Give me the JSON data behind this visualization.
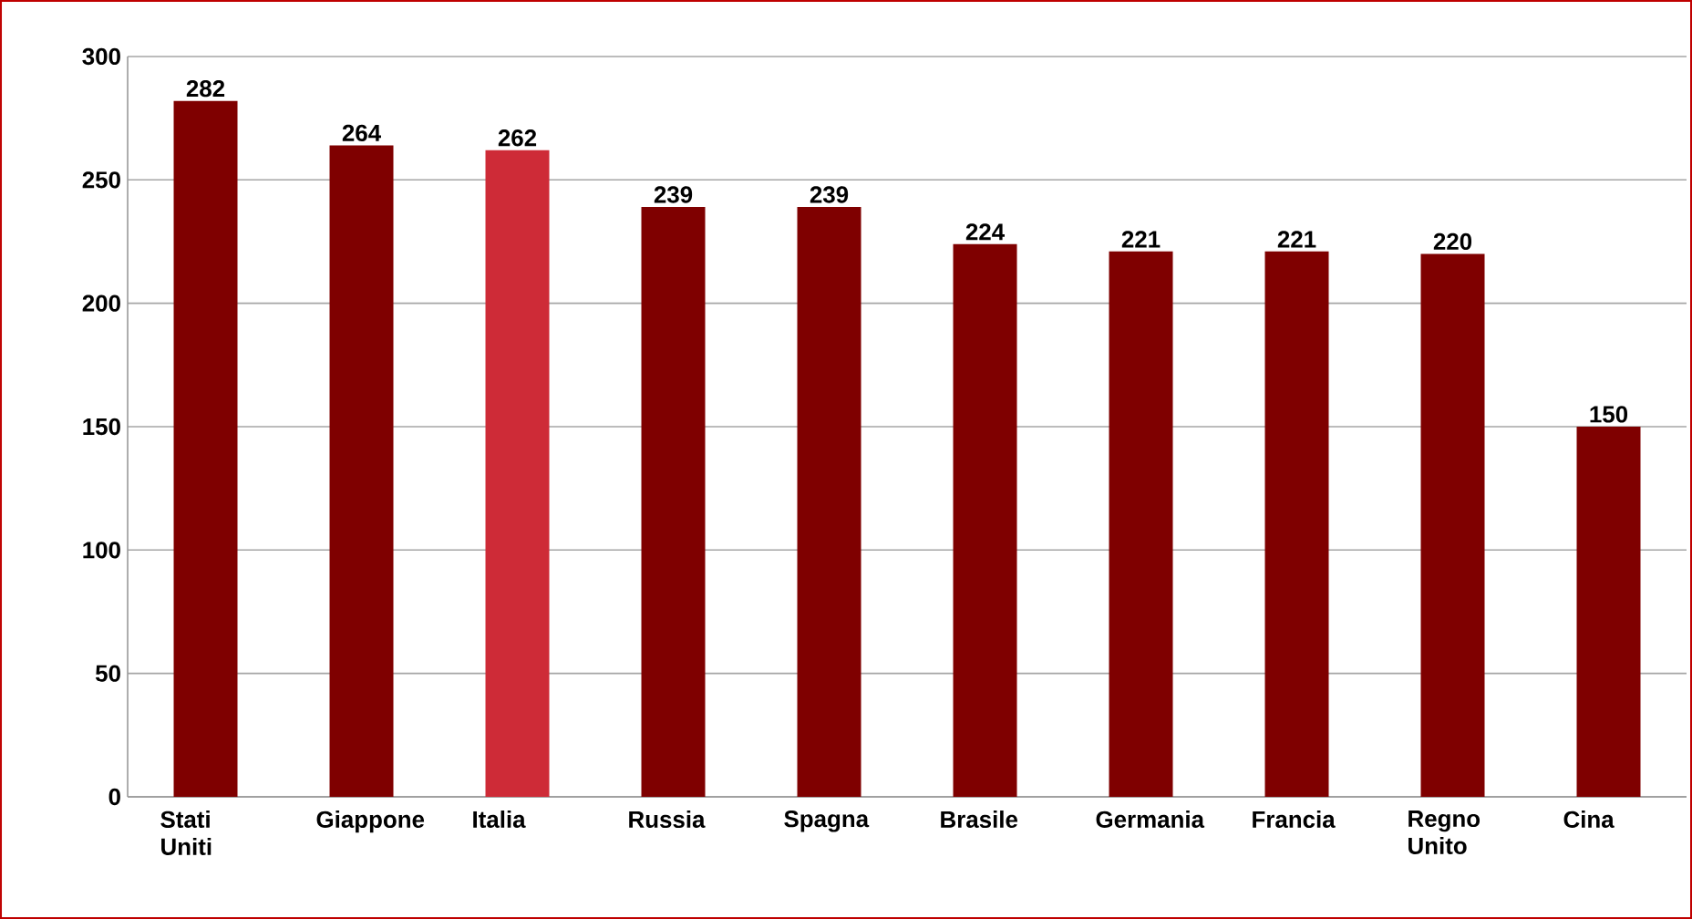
{
  "chart_data": {
    "type": "bar",
    "categories": [
      "Stati Uniti",
      "Giappone",
      "Italia",
      "Russia",
      "Spagna",
      "Brasile",
      "Germania",
      "Francia",
      "Regno Unito",
      "Cina"
    ],
    "values": [
      282,
      264,
      262,
      239,
      239,
      224,
      221,
      221,
      220,
      150
    ],
    "colors": [
      "#7f0000",
      "#7f0000",
      "#ce2b37",
      "#7f0000",
      "#7f0000",
      "#7f0000",
      "#7f0000",
      "#7f0000",
      "#7f0000",
      "#7f0000"
    ],
    "ylim": [
      0,
      300
    ],
    "yticks": [
      0,
      50,
      100,
      150,
      200,
      250,
      300
    ],
    "grid": "y",
    "data_labels": true
  }
}
